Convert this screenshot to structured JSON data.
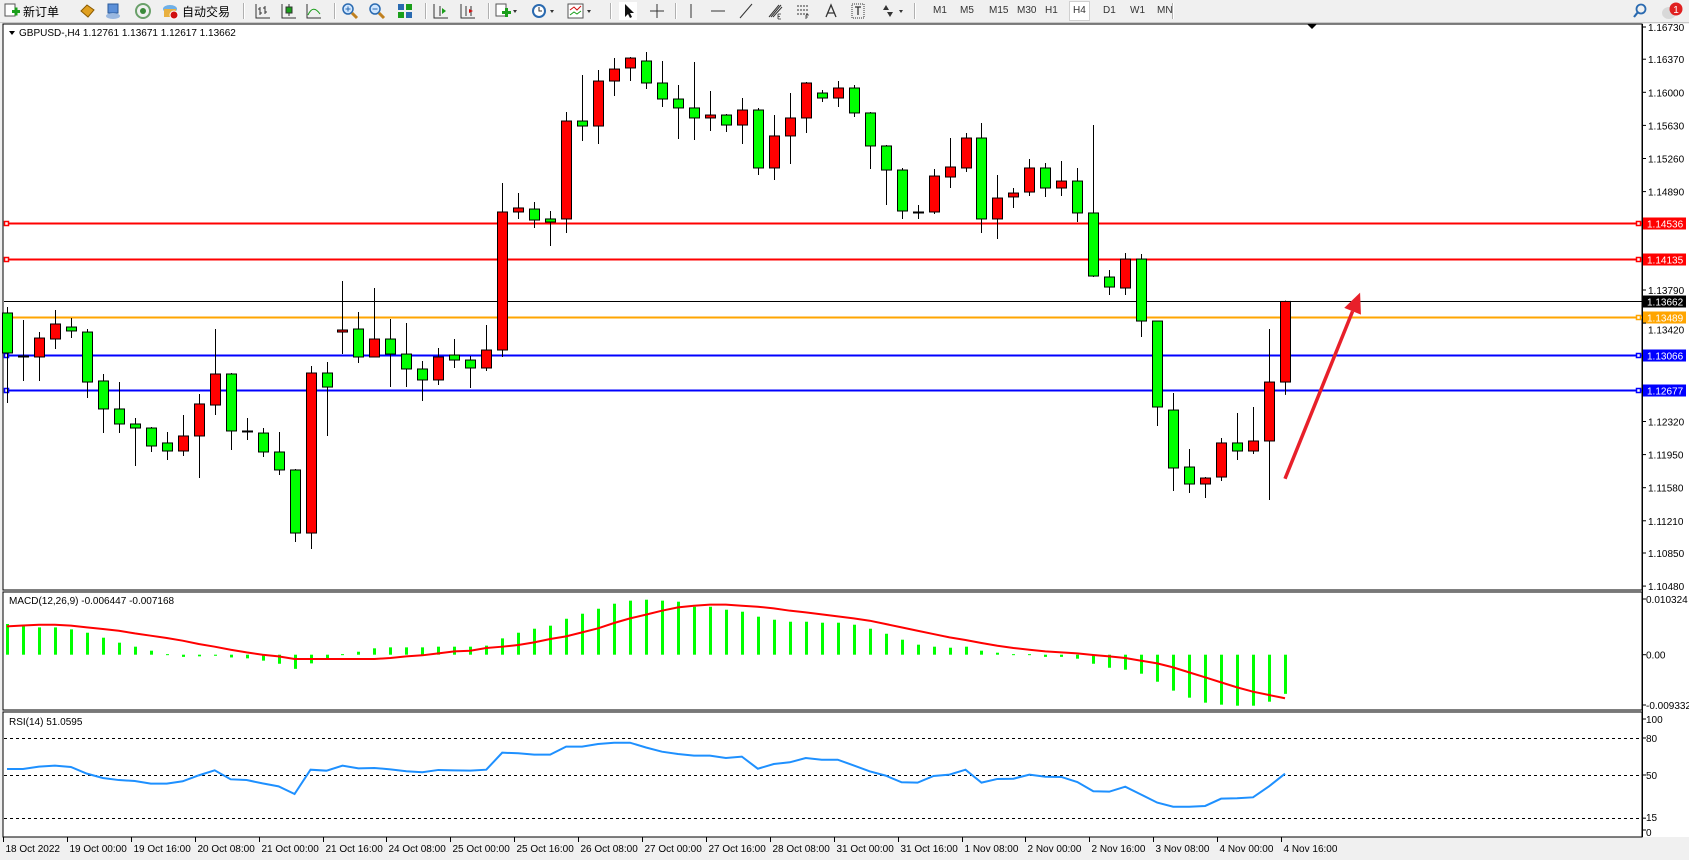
{
  "toolbar": {
    "new_order_label": "新订单",
    "auto_trading_label": "自动交易",
    "timeframes": [
      "M1",
      "M5",
      "M15",
      "M30",
      "H1",
      "H4",
      "D1",
      "W1",
      "MN"
    ],
    "active_timeframe": "H4",
    "notification_count": "1",
    "icons": [
      "new-order-icon",
      "history-center-icon",
      "profile-icon",
      "signals-icon",
      "auto-trading-icon",
      "bar-chart-icon",
      "candlestick-icon",
      "line-chart-icon",
      "zoom-in-icon",
      "zoom-out-icon",
      "tile-windows-icon",
      "auto-scroll-icon",
      "chart-shift-icon",
      "indicators-icon",
      "periods-icon",
      "templates-icon",
      "cursor-icon",
      "crosshair-icon",
      "vertical-line-icon",
      "horizontal-line-icon",
      "trendline-icon",
      "fibonacci-icon",
      "fibo-expansion-icon",
      "text-icon",
      "text-label-icon",
      "arrows-icon",
      "search-icon",
      "notifications-icon"
    ]
  },
  "chart": {
    "header": "GBPUSD-,H4  1.12761 1.13671 1.12617 1.13662",
    "macd_label": "MACD(12,26,9) -0.006447 -0.007168",
    "rsi_label": "RSI(14) 51.0595"
  },
  "colors": {
    "bull": "#ff0000",
    "bear": "#00ff00",
    "macd_hist": "#00ff00",
    "macd_signal": "#ff0000",
    "rsi_line": "#1e90ff",
    "arrow": "#e8202a"
  },
  "chart_data": [
    {
      "type": "candlestick",
      "symbol": "GBPUSD-",
      "timeframe": "H4",
      "y_ticks": [
        "1.16730",
        "1.16370",
        "1.16000",
        "1.15630",
        "1.15260",
        "1.14890",
        "1.13790",
        "1.13420",
        "1.12320",
        "1.11950",
        "1.11580",
        "1.11210",
        "1.10850",
        "1.10480"
      ],
      "ylim": [
        1.1048,
        1.1673
      ],
      "x_labels": [
        "18 Oct 2022",
        "19 Oct 00:00",
        "19 Oct 16:00",
        "20 Oct 08:00",
        "21 Oct 00:00",
        "21 Oct 16:00",
        "24 Oct 08:00",
        "25 Oct 00:00",
        "25 Oct 16:00",
        "26 Oct 08:00",
        "27 Oct 00:00",
        "27 Oct 16:00",
        "28 Oct 08:00",
        "31 Oct 00:00",
        "31 Oct 16:00",
        "1 Nov 08:00",
        "2 Nov 00:00",
        "2 Nov 16:00",
        "3 Nov 08:00",
        "4 Nov 00:00",
        "4 Nov 16:00"
      ],
      "bars_per_x_label": 4,
      "ohlc": [
        [
          1.13533,
          1.136,
          1.12527,
          1.13086
        ],
        [
          1.13052,
          1.13455,
          1.12773,
          1.13041
        ],
        [
          1.13041,
          1.1332,
          1.12773,
          1.13253
        ],
        [
          1.13242,
          1.13566,
          1.1313,
          1.1341
        ],
        [
          1.13376,
          1.13477,
          1.13253,
          1.13332
        ],
        [
          1.1332,
          1.13354,
          1.12583,
          1.12761
        ],
        [
          1.12773,
          1.12851,
          1.12191,
          1.1246
        ],
        [
          1.1246,
          1.12761,
          1.12191,
          1.12292
        ],
        [
          1.12292,
          1.12359,
          1.11822,
          1.12247
        ],
        [
          1.12247,
          1.12258,
          1.11979,
          1.12046
        ],
        [
          1.1208,
          1.12203,
          1.1189,
          1.1199
        ],
        [
          1.1199,
          1.12393,
          1.11934,
          1.12158
        ],
        [
          1.12158,
          1.12627,
          1.11688,
          1.12516
        ],
        [
          1.12504,
          1.13354,
          1.12393,
          1.12851
        ],
        [
          1.12851,
          1.12862,
          1.12001,
          1.12214
        ],
        [
          1.12214,
          1.12359,
          1.12113,
          1.12203
        ],
        [
          1.12191,
          1.12247,
          1.11923,
          1.11979
        ],
        [
          1.11979,
          1.12203,
          1.11722,
          1.11778
        ],
        [
          1.11778,
          1.11789,
          1.10973,
          1.11073
        ],
        [
          1.11073,
          1.1294,
          1.10895,
          1.12862
        ],
        [
          1.12862,
          1.12985,
          1.12158,
          1.12705
        ],
        [
          1.1332,
          1.13891,
          1.13074,
          1.13343
        ],
        [
          1.13354,
          1.13544,
          1.12974,
          1.13041
        ],
        [
          1.13041,
          1.13812,
          1.13041,
          1.13242
        ],
        [
          1.13242,
          1.13466,
          1.12705,
          1.13074
        ],
        [
          1.13074,
          1.13421,
          1.12705,
          1.12907
        ],
        [
          1.12907,
          1.12996,
          1.12549,
          1.12784
        ],
        [
          1.12784,
          1.13142,
          1.12728,
          1.13041
        ],
        [
          1.13063,
          1.13242,
          1.12918,
          1.13007
        ],
        [
          1.13007,
          1.13052,
          1.12694,
          1.12918
        ],
        [
          1.12918,
          1.13399,
          1.12884,
          1.13119
        ],
        [
          1.13119,
          1.14986,
          1.13041,
          1.14662
        ],
        [
          1.14662,
          1.14874,
          1.14584,
          1.14707
        ],
        [
          1.14695,
          1.14774,
          1.14483,
          1.14572
        ],
        [
          1.14584,
          1.14673,
          1.14282,
          1.1455
        ],
        [
          1.14584,
          1.1578,
          1.14427,
          1.15679
        ],
        [
          1.15679,
          1.16193,
          1.15456,
          1.15623
        ],
        [
          1.15623,
          1.16249,
          1.15422,
          1.16126
        ],
        [
          1.16126,
          1.16383,
          1.15959,
          1.1626
        ],
        [
          1.16272,
          1.16395,
          1.16126,
          1.16383
        ],
        [
          1.1635,
          1.1645,
          1.16037,
          1.16104
        ],
        [
          1.16104,
          1.1635,
          1.15836,
          1.15925
        ],
        [
          1.15925,
          1.16082,
          1.15478,
          1.15825
        ],
        [
          1.15825,
          1.16339,
          1.15467,
          1.15713
        ],
        [
          1.15713,
          1.16015,
          1.15567,
          1.15746
        ],
        [
          1.15746,
          1.15757,
          1.15556,
          1.15634
        ],
        [
          1.15634,
          1.15936,
          1.15422,
          1.15802
        ],
        [
          1.15802,
          1.15825,
          1.15075,
          1.15154
        ],
        [
          1.15154,
          1.15746,
          1.1502,
          1.15512
        ],
        [
          1.15512,
          1.15992,
          1.15198,
          1.15713
        ],
        [
          1.15713,
          1.16115,
          1.15545,
          1.16104
        ],
        [
          1.15992,
          1.16026,
          1.15892,
          1.15936
        ],
        [
          1.15936,
          1.16126,
          1.15836,
          1.16048
        ],
        [
          1.16048,
          1.16082,
          1.15724,
          1.15769
        ],
        [
          1.15769,
          1.1578,
          1.15142,
          1.154
        ],
        [
          1.154,
          1.15411,
          1.1474,
          1.15131
        ],
        [
          1.15131,
          1.15154,
          1.14584,
          1.14673
        ],
        [
          1.14662,
          1.1474,
          1.14584,
          1.14662
        ],
        [
          1.14662,
          1.15142,
          1.1464,
          1.15064
        ],
        [
          1.15053,
          1.15489,
          1.1493,
          1.15165
        ],
        [
          1.15154,
          1.15545,
          1.15109,
          1.15489
        ],
        [
          1.15489,
          1.15657,
          1.14427,
          1.14584
        ],
        [
          1.14584,
          1.15075,
          1.1436,
          1.14818
        ],
        [
          1.1483,
          1.1493,
          1.14707,
          1.14874
        ],
        [
          1.14885,
          1.15254,
          1.14841,
          1.15154
        ],
        [
          1.15154,
          1.1521,
          1.1483,
          1.1493
        ],
        [
          1.1493,
          1.15232,
          1.14841,
          1.15008
        ],
        [
          1.15008,
          1.15154,
          1.1455,
          1.14651
        ],
        [
          1.14651,
          1.15634,
          1.13935,
          1.13946
        ],
        [
          1.13935,
          1.14014,
          1.13734,
          1.13823
        ],
        [
          1.13812,
          1.14204,
          1.13734,
          1.14136
        ],
        [
          1.14136,
          1.14192,
          1.13265,
          1.13443
        ],
        [
          1.13443,
          1.13443,
          1.1227,
          1.12482
        ],
        [
          1.12448,
          1.12638,
          1.11543,
          1.118
        ],
        [
          1.11811,
          1.12012,
          1.11521,
          1.11621
        ],
        [
          1.11621,
          1.11699,
          1.11465,
          1.11688
        ],
        [
          1.11699,
          1.12135,
          1.11655,
          1.1208
        ],
        [
          1.1208,
          1.12415,
          1.1189,
          1.1199
        ],
        [
          1.1199,
          1.12482,
          1.11957,
          1.12102
        ],
        [
          1.12102,
          1.13354,
          1.11442,
          1.12761
        ],
        [
          1.12761,
          1.13671,
          1.12617,
          1.13662
        ]
      ],
      "bid": {
        "value": 1.13662,
        "label": "1.13662",
        "color": "#000000"
      },
      "levels": [
        {
          "value": 1.14536,
          "label": "1.14536",
          "color": "#ff0000"
        },
        {
          "value": 1.14135,
          "label": "1.14135",
          "color": "#ff0000"
        },
        {
          "value": 1.13489,
          "label": "1.13489",
          "color": "#ffa500"
        },
        {
          "value": 1.13066,
          "label": "1.13066",
          "color": "#0000ff"
        },
        {
          "value": 1.12677,
          "label": "1.12677",
          "color": "#0000ff"
        }
      ],
      "annotation": {
        "type": "arrow",
        "color": "#e8202a",
        "from": {
          "bar": 80,
          "price": 1.1168
        },
        "to": {
          "bar": 84.7,
          "price": 1.1376
        }
      }
    },
    {
      "type": "bar",
      "indicator": "MACD(12,26,9)",
      "y_ticks": [
        "0.010324",
        "0.00",
        "-0.009332"
      ],
      "ylim": [
        -0.009332,
        0.010324
      ],
      "histogram": [
        0.00506,
        0.00478,
        0.0045,
        0.0045,
        0.00417,
        0.00362,
        0.0028,
        0.00198,
        0.00132,
        0.00066,
        9e-05,
        -0.00036,
        -0.00027,
        -0.00018,
        -0.00045,
        -0.0006,
        -0.00098,
        -0.00149,
        -0.00233,
        -0.00143,
        -0.0006,
        9e-05,
        0.00049,
        0.00105,
        0.00121,
        0.00121,
        0.00121,
        0.00132,
        0.00132,
        0.00132,
        0.00149,
        0.00269,
        0.00362,
        0.00428,
        0.00478,
        0.00592,
        0.00675,
        0.00757,
        0.0084,
        0.0089,
        0.00906,
        0.0089,
        0.00873,
        0.0079,
        0.0079,
        0.00741,
        0.00708,
        0.00626,
        0.00576,
        0.00543,
        0.00543,
        0.00527,
        0.00527,
        0.00494,
        0.00428,
        0.00345,
        0.00247,
        0.00165,
        0.00132,
        0.00115,
        0.00132,
        0.00066,
        0.00033,
        9e-05,
        9e-05,
        -0.00036,
        -0.00036,
        -0.00066,
        -0.00149,
        -0.00215,
        -0.00247,
        -0.00313,
        -0.00445,
        -0.00592,
        -0.00708,
        -0.0079,
        -0.00823,
        -0.0084,
        -0.0084,
        -0.00774,
        -0.006447
      ],
      "signal": [
        0.00467,
        0.0048,
        0.00494,
        0.00494,
        0.00478,
        0.0045,
        0.00423,
        0.00395,
        0.00351,
        0.00313,
        0.00275,
        0.00231,
        0.00176,
        0.00132,
        0.00082,
        0.00038,
        0.0,
        -0.00027,
        -0.00071,
        -0.00071,
        -0.00071,
        -0.00071,
        -0.00071,
        -0.00071,
        -0.00055,
        -0.00027,
        -0.0001,
        0.00022,
        0.00055,
        0.00066,
        0.0011,
        0.00132,
        0.00159,
        0.00203,
        0.00258,
        0.00302,
        0.00368,
        0.00434,
        0.00522,
        0.00598,
        0.0066,
        0.00725,
        0.0078,
        0.00807,
        0.00824,
        0.00824,
        0.00807,
        0.0079,
        0.00763,
        0.00725,
        0.00697,
        0.00664,
        0.00631,
        0.00598,
        0.0056,
        0.00505,
        0.0045,
        0.00395,
        0.0034,
        0.00285,
        0.00242,
        0.00192,
        0.00148,
        0.0011,
        0.00082,
        0.00055,
        0.00038,
        0.00022,
        -5e-05,
        -0.00027,
        -0.00055,
        -0.00099,
        -0.00143,
        -0.00209,
        -0.00291,
        -0.00373,
        -0.00456,
        -0.00538,
        -0.00609,
        -0.00664,
        -0.007168
      ]
    },
    {
      "type": "line",
      "indicator": "RSI(14)",
      "y_ticks": [
        "100",
        "80",
        "50",
        "15",
        "0"
      ],
      "levels": [
        80,
        50,
        15
      ],
      "ylim": [
        0,
        100
      ],
      "values": [
        54.9,
        54.9,
        56.8,
        57.6,
        56.5,
        51.1,
        47.6,
        45.9,
        45.1,
        43.0,
        43.0,
        44.9,
        49.7,
        53.8,
        46.5,
        45.9,
        43.2,
        40.8,
        34.6,
        54.3,
        53.5,
        57.6,
        55.4,
        55.7,
        54.6,
        53.0,
        52.2,
        54.1,
        53.8,
        53.5,
        54.3,
        68.1,
        67.6,
        66.5,
        66.5,
        73.0,
        73.0,
        75.1,
        76.2,
        76.2,
        72.3,
        68.9,
        67.0,
        65.7,
        65.7,
        63.8,
        64.9,
        55.1,
        58.9,
        60.3,
        63.8,
        62.4,
        62.4,
        57.8,
        53.0,
        49.5,
        44.1,
        43.8,
        49.2,
        50.3,
        54.3,
        43.8,
        46.8,
        47.0,
        50.3,
        48.6,
        48.4,
        44.3,
        36.8,
        36.5,
        40.5,
        34.1,
        27.6,
        24.3,
        24.3,
        24.9,
        30.8,
        31.1,
        31.9,
        40.8,
        51.0595
      ]
    }
  ]
}
